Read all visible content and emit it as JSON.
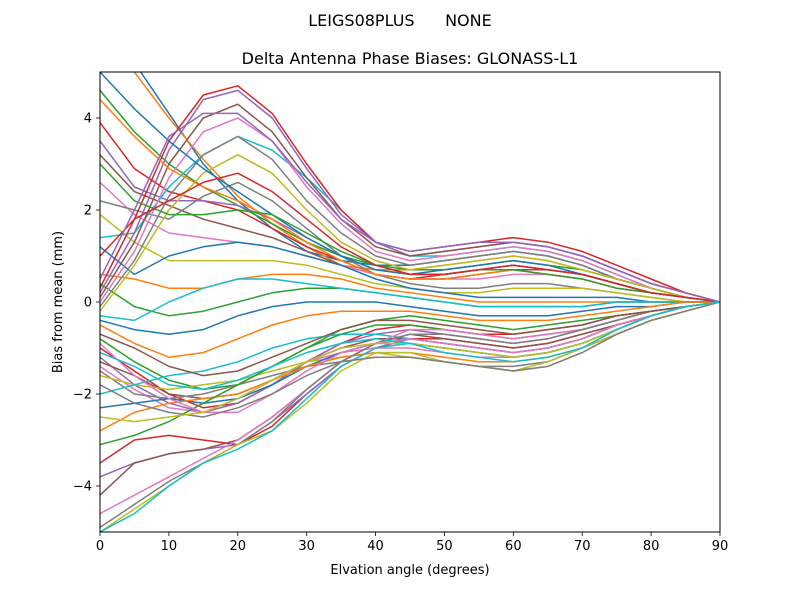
{
  "figure": {
    "suptitle": "LEIGS08PLUS      NONE"
  },
  "chart_data": {
    "type": "line",
    "title": "Delta Antenna Phase Biases: GLONASS-L1",
    "xlabel": "Elvation angle (degrees)",
    "ylabel": "Bias from mean (mm)",
    "xlim": [
      0,
      90
    ],
    "ylim": [
      -5,
      5
    ],
    "grid": false,
    "x": [
      0,
      5,
      10,
      15,
      20,
      25,
      30,
      35,
      40,
      45,
      50,
      55,
      60,
      65,
      70,
      75,
      80,
      85,
      90
    ],
    "xticks": [
      0,
      10,
      20,
      30,
      40,
      50,
      60,
      70,
      80,
      90
    ],
    "yticks": [
      -4,
      -2,
      0,
      2,
      4
    ],
    "color_cycle": [
      "#1f77b4",
      "#ff7f0e",
      "#2ca02c",
      "#d62728",
      "#9467bd",
      "#8c564b",
      "#e377c2",
      "#7f7f7f",
      "#bcbd22",
      "#17becf"
    ],
    "series": [
      {
        "values": [
          5.8,
          5.2,
          4.1,
          3.0,
          2.2,
          1.6,
          1.1,
          0.9,
          0.8,
          0.8,
          0.9,
          1.0,
          1.1,
          1.0,
          0.8,
          0.5,
          0.3,
          0.1,
          0.0
        ]
      },
      {
        "values": [
          5.5,
          5.0,
          4.0,
          3.1,
          2.3,
          1.7,
          1.2,
          0.8,
          0.7,
          0.7,
          0.8,
          0.9,
          1.0,
          0.9,
          0.7,
          0.5,
          0.3,
          0.1,
          0.0
        ]
      },
      {
        "values": [
          4.6,
          3.7,
          3.0,
          2.5,
          2.1,
          1.7,
          1.3,
          1.0,
          0.8,
          0.7,
          0.7,
          0.8,
          0.9,
          0.8,
          0.7,
          0.5,
          0.3,
          0.1,
          0.0
        ]
      },
      {
        "values": [
          3.9,
          2.9,
          2.4,
          2.2,
          2.0,
          1.6,
          1.2,
          0.9,
          0.6,
          0.5,
          0.6,
          0.7,
          0.8,
          0.7,
          0.6,
          0.4,
          0.2,
          0.1,
          0.0
        ]
      },
      {
        "values": [
          3.5,
          2.5,
          2.2,
          2.2,
          2.1,
          1.8,
          1.4,
          1.0,
          0.7,
          0.6,
          0.6,
          0.7,
          0.8,
          0.7,
          0.6,
          0.4,
          0.2,
          0.1,
          0.0
        ]
      },
      {
        "values": [
          3.2,
          2.4,
          2.1,
          1.8,
          1.6,
          1.4,
          1.1,
          0.8,
          0.6,
          0.5,
          0.5,
          0.6,
          0.7,
          0.7,
          0.6,
          0.4,
          0.2,
          0.1,
          0.0
        ]
      },
      {
        "values": [
          2.6,
          1.9,
          1.5,
          1.4,
          1.3,
          1.2,
          1.0,
          0.8,
          0.6,
          0.5,
          0.5,
          0.5,
          0.6,
          0.6,
          0.5,
          0.3,
          0.2,
          0.1,
          0.0
        ]
      },
      {
        "values": [
          2.2,
          2.0,
          1.8,
          2.3,
          2.6,
          2.2,
          1.6,
          1.0,
          0.6,
          0.4,
          0.3,
          0.3,
          0.4,
          0.4,
          0.3,
          0.2,
          0.1,
          0.0,
          0.0
        ]
      },
      {
        "values": [
          1.9,
          1.3,
          0.9,
          0.9,
          0.9,
          0.9,
          0.8,
          0.6,
          0.4,
          0.3,
          0.2,
          0.2,
          0.3,
          0.3,
          0.3,
          0.2,
          0.1,
          0.0,
          0.0
        ]
      },
      {
        "values": [
          1.4,
          1.5,
          2.5,
          3.2,
          3.6,
          3.3,
          2.7,
          2.0,
          1.3,
          1.0,
          1.0,
          1.1,
          1.2,
          1.1,
          0.9,
          0.6,
          0.3,
          0.1,
          0.0
        ]
      },
      {
        "values": [
          1.2,
          0.6,
          1.0,
          1.2,
          1.3,
          1.2,
          1.0,
          0.8,
          0.5,
          0.3,
          0.2,
          0.1,
          0.1,
          0.1,
          0.1,
          0.1,
          0.0,
          0.0,
          0.0
        ]
      },
      {
        "values": [
          0.6,
          0.5,
          0.3,
          0.3,
          0.5,
          0.6,
          0.6,
          0.5,
          0.3,
          0.2,
          0.1,
          0.0,
          0.0,
          0.0,
          0.0,
          0.0,
          0.0,
          0.0,
          0.0
        ]
      },
      {
        "values": [
          0.4,
          -0.1,
          -0.3,
          -0.2,
          0.0,
          0.2,
          0.3,
          0.3,
          0.2,
          0.1,
          0.0,
          -0.1,
          -0.1,
          -0.1,
          -0.1,
          0.0,
          0.0,
          0.0,
          0.0
        ]
      },
      {
        "values": [
          0.3,
          1.8,
          3.5,
          4.5,
          4.7,
          4.1,
          3.0,
          2.0,
          1.3,
          1.1,
          1.2,
          1.3,
          1.4,
          1.3,
          1.1,
          0.8,
          0.5,
          0.2,
          0.0
        ]
      },
      {
        "values": [
          0.2,
          1.5,
          3.3,
          4.4,
          4.6,
          4.0,
          2.9,
          1.9,
          1.3,
          1.0,
          1.1,
          1.2,
          1.3,
          1.2,
          1.0,
          0.7,
          0.4,
          0.2,
          0.0
        ]
      },
      {
        "values": [
          0.1,
          1.3,
          3.0,
          4.0,
          4.3,
          3.7,
          2.7,
          1.8,
          1.2,
          1.0,
          1.1,
          1.2,
          1.3,
          1.2,
          1.0,
          0.7,
          0.4,
          0.2,
          0.0
        ]
      },
      {
        "values": [
          0.0,
          1.1,
          2.7,
          3.7,
          4.0,
          3.5,
          2.5,
          1.7,
          1.1,
          0.9,
          1.0,
          1.1,
          1.2,
          1.1,
          0.9,
          0.6,
          0.3,
          0.1,
          0.0
        ]
      },
      {
        "values": [
          -0.1,
          0.9,
          2.3,
          3.2,
          3.6,
          3.1,
          2.2,
          1.5,
          1.0,
          0.8,
          0.9,
          1.0,
          1.1,
          1.0,
          0.8,
          0.5,
          0.3,
          0.1,
          0.0
        ]
      },
      {
        "values": [
          -0.2,
          0.8,
          2.0,
          2.8,
          3.2,
          2.8,
          2.0,
          1.3,
          0.9,
          0.7,
          0.8,
          0.9,
          1.0,
          0.9,
          0.7,
          0.5,
          0.3,
          0.1,
          0.0
        ]
      },
      {
        "values": [
          -0.3,
          -0.4,
          0.0,
          0.3,
          0.5,
          0.5,
          0.4,
          0.3,
          0.2,
          0.1,
          0.0,
          -0.1,
          -0.1,
          -0.1,
          -0.1,
          0.0,
          0.0,
          0.0,
          0.0
        ]
      },
      {
        "values": [
          -0.4,
          -0.6,
          -0.7,
          -0.6,
          -0.3,
          -0.1,
          0.0,
          0.0,
          0.0,
          -0.1,
          -0.2,
          -0.3,
          -0.3,
          -0.3,
          -0.2,
          -0.1,
          -0.1,
          0.0,
          0.0
        ]
      },
      {
        "values": [
          -0.5,
          -0.9,
          -1.2,
          -1.1,
          -0.8,
          -0.5,
          -0.3,
          -0.2,
          -0.2,
          -0.2,
          -0.3,
          -0.4,
          -0.4,
          -0.4,
          -0.3,
          -0.2,
          -0.1,
          0.0,
          0.0
        ]
      },
      {
        "values": [
          -0.8,
          -1.3,
          -1.7,
          -1.9,
          -1.8,
          -1.4,
          -1.0,
          -0.6,
          -0.4,
          -0.3,
          -0.4,
          -0.5,
          -0.6,
          -0.5,
          -0.4,
          -0.3,
          -0.2,
          -0.1,
          0.0
        ]
      },
      {
        "values": [
          -1.0,
          -1.5,
          -2.0,
          -2.3,
          -2.2,
          -1.8,
          -1.3,
          -0.9,
          -0.6,
          -0.5,
          -0.6,
          -0.7,
          -0.7,
          -0.6,
          -0.5,
          -0.3,
          -0.2,
          -0.1,
          0.0
        ]
      },
      {
        "values": [
          -1.2,
          -1.8,
          -2.2,
          -2.4,
          -2.2,
          -1.8,
          -1.3,
          -0.9,
          -0.7,
          -0.6,
          -0.7,
          -0.8,
          -0.9,
          -0.8,
          -0.6,
          -0.4,
          -0.2,
          -0.1,
          0.0
        ]
      },
      {
        "values": [
          -1.3,
          -1.6,
          -2.0,
          -2.1,
          -2.0,
          -1.7,
          -1.3,
          -1.0,
          -0.8,
          -0.8,
          -0.9,
          -1.0,
          -1.1,
          -1.0,
          -0.8,
          -0.5,
          -0.3,
          -0.1,
          0.0
        ]
      },
      {
        "values": [
          -1.4,
          -1.9,
          -2.3,
          -2.4,
          -2.1,
          -1.7,
          -1.3,
          -1.1,
          -1.0,
          -1.0,
          -1.1,
          -1.2,
          -1.2,
          -1.1,
          -0.9,
          -0.6,
          -0.3,
          -0.1,
          0.0
        ]
      },
      {
        "values": [
          -1.5,
          -2.0,
          -2.1,
          -2.0,
          -1.8,
          -1.6,
          -1.4,
          -1.3,
          -1.2,
          -1.2,
          -1.3,
          -1.4,
          -1.4,
          -1.3,
          -1.0,
          -0.7,
          -0.4,
          -0.2,
          0.0
        ]
      },
      {
        "values": [
          -1.6,
          -1.8,
          -1.9,
          -1.8,
          -1.7,
          -1.5,
          -1.3,
          -1.2,
          -1.1,
          -1.2,
          -1.3,
          -1.4,
          -1.5,
          -1.4,
          -1.1,
          -0.7,
          -0.4,
          -0.2,
          0.0
        ]
      },
      {
        "values": [
          -2.0,
          -1.8,
          -1.6,
          -1.5,
          -1.3,
          -1.0,
          -0.8,
          -0.7,
          -0.7,
          -0.8,
          -0.9,
          -1.0,
          -1.1,
          -1.0,
          -0.8,
          -0.5,
          -0.3,
          -0.1,
          0.0
        ]
      },
      {
        "values": [
          -2.3,
          -2.2,
          -2.1,
          -2.2,
          -2.1,
          -1.8,
          -1.4,
          -1.1,
          -0.9,
          -0.9,
          -1.0,
          -1.1,
          -1.2,
          -1.1,
          -0.9,
          -0.6,
          -0.3,
          -0.1,
          0.0
        ]
      },
      {
        "values": [
          -2.8,
          -2.4,
          -2.2,
          -2.1,
          -2.0,
          -1.7,
          -1.4,
          -1.2,
          -1.1,
          -1.1,
          -1.2,
          -1.3,
          -1.3,
          -1.2,
          -1.0,
          -0.6,
          -0.3,
          -0.1,
          0.0
        ]
      },
      {
        "values": [
          -3.1,
          -2.9,
          -2.6,
          -2.2,
          -1.8,
          -1.4,
          -1.0,
          -0.7,
          -0.5,
          -0.5,
          -0.6,
          -0.7,
          -0.8,
          -0.7,
          -0.6,
          -0.4,
          -0.2,
          -0.1,
          0.0
        ]
      },
      {
        "values": [
          -3.5,
          -3.0,
          -2.9,
          -3.0,
          -3.1,
          -2.7,
          -2.0,
          -1.4,
          -1.0,
          -0.8,
          -0.8,
          -0.9,
          -1.0,
          -0.9,
          -0.7,
          -0.5,
          -0.3,
          -0.1,
          0.0
        ]
      },
      {
        "values": [
          -3.8,
          -3.5,
          -3.3,
          -3.2,
          -3.1,
          -2.6,
          -2.0,
          -1.4,
          -1.0,
          -0.8,
          -0.9,
          -1.0,
          -1.1,
          -1.0,
          -0.8,
          -0.5,
          -0.3,
          -0.1,
          0.0
        ]
      },
      {
        "values": [
          -4.2,
          -3.5,
          -3.3,
          -3.2,
          -3.0,
          -2.5,
          -1.9,
          -1.3,
          -0.9,
          -0.7,
          -0.8,
          -0.9,
          -1.0,
          -0.9,
          -0.7,
          -0.5,
          -0.3,
          -0.1,
          0.0
        ]
      },
      {
        "values": [
          -4.6,
          -4.2,
          -3.8,
          -3.4,
          -3.0,
          -2.5,
          -1.9,
          -1.3,
          -0.9,
          -0.6,
          -0.6,
          -0.7,
          -0.8,
          -0.7,
          -0.6,
          -0.4,
          -0.2,
          -0.1,
          0.0
        ]
      },
      {
        "values": [
          -4.9,
          -4.4,
          -3.9,
          -3.5,
          -3.1,
          -2.6,
          -1.9,
          -1.3,
          -0.9,
          -0.7,
          -0.7,
          -0.8,
          -0.9,
          -0.8,
          -0.6,
          -0.4,
          -0.2,
          -0.1,
          0.0
        ]
      },
      {
        "values": [
          -5.0,
          -4.5,
          -4.0,
          -3.5,
          -3.1,
          -2.8,
          -2.2,
          -1.5,
          -1.1,
          -1.1,
          -1.3,
          -1.4,
          -1.5,
          -1.3,
          -1.0,
          -0.7,
          -0.4,
          -0.2,
          0.0
        ]
      },
      {
        "values": [
          -5.0,
          -4.6,
          -4.0,
          -3.5,
          -3.2,
          -2.8,
          -2.1,
          -1.4,
          -1.0,
          -0.9,
          -1.0,
          -1.1,
          -1.2,
          -1.1,
          -0.9,
          -0.6,
          -0.3,
          -0.1,
          0.0
        ]
      },
      {
        "values": [
          5.0,
          4.2,
          3.5,
          2.9,
          2.4,
          1.9,
          1.4,
          1.0,
          0.7,
          0.6,
          0.7,
          0.8,
          0.9,
          0.8,
          0.6,
          0.4,
          0.2,
          0.1,
          0.0
        ]
      },
      {
        "values": [
          4.4,
          3.6,
          2.9,
          2.5,
          2.2,
          1.8,
          1.3,
          0.9,
          0.6,
          0.5,
          0.5,
          0.6,
          0.7,
          0.6,
          0.5,
          0.3,
          0.2,
          0.1,
          0.0
        ]
      },
      {
        "values": [
          3.0,
          2.2,
          1.9,
          1.9,
          2.0,
          1.9,
          1.5,
          1.1,
          0.8,
          0.6,
          0.6,
          0.7,
          0.7,
          0.6,
          0.5,
          0.3,
          0.2,
          0.1,
          0.0
        ]
      },
      {
        "values": [
          1.0,
          1.8,
          2.2,
          2.6,
          2.8,
          2.4,
          1.8,
          1.2,
          0.8,
          0.6,
          0.6,
          0.7,
          0.8,
          0.7,
          0.6,
          0.4,
          0.2,
          0.1,
          0.0
        ]
      },
      {
        "values": [
          0.5,
          2.0,
          3.6,
          4.1,
          4.1,
          3.5,
          2.6,
          1.8,
          1.3,
          1.1,
          1.2,
          1.3,
          1.3,
          1.2,
          1.0,
          0.7,
          0.4,
          0.2,
          0.0
        ]
      },
      {
        "values": [
          -0.7,
          -1.0,
          -1.4,
          -1.6,
          -1.5,
          -1.2,
          -0.9,
          -0.6,
          -0.4,
          -0.4,
          -0.5,
          -0.6,
          -0.7,
          -0.6,
          -0.5,
          -0.3,
          -0.2,
          -0.1,
          0.0
        ]
      },
      {
        "values": [
          -0.9,
          -1.6,
          -2.1,
          -2.4,
          -2.4,
          -2.0,
          -1.5,
          -1.1,
          -0.9,
          -0.8,
          -0.9,
          -1.0,
          -1.1,
          -1.0,
          -0.8,
          -0.5,
          -0.3,
          -0.1,
          0.0
        ]
      },
      {
        "values": [
          -1.8,
          -2.2,
          -2.4,
          -2.5,
          -2.3,
          -2.0,
          -1.6,
          -1.3,
          -1.2,
          -1.2,
          -1.3,
          -1.4,
          -1.5,
          -1.4,
          -1.1,
          -0.7,
          -0.4,
          -0.2,
          0.0
        ]
      },
      {
        "values": [
          -2.5,
          -2.6,
          -2.5,
          -2.4,
          -2.1,
          -1.7,
          -1.3,
          -1.0,
          -0.9,
          -0.9,
          -1.0,
          -1.1,
          -1.2,
          -1.1,
          -0.9,
          -0.6,
          -0.3,
          -0.1,
          0.0
        ]
      },
      {
        "values": [
          -1.1,
          -1.4,
          -1.8,
          -1.9,
          -1.7,
          -1.4,
          -1.1,
          -0.9,
          -0.8,
          -0.9,
          -1.1,
          -1.2,
          -1.3,
          -1.2,
          -1.0,
          -0.6,
          -0.3,
          -0.1,
          0.0
        ]
      }
    ]
  }
}
